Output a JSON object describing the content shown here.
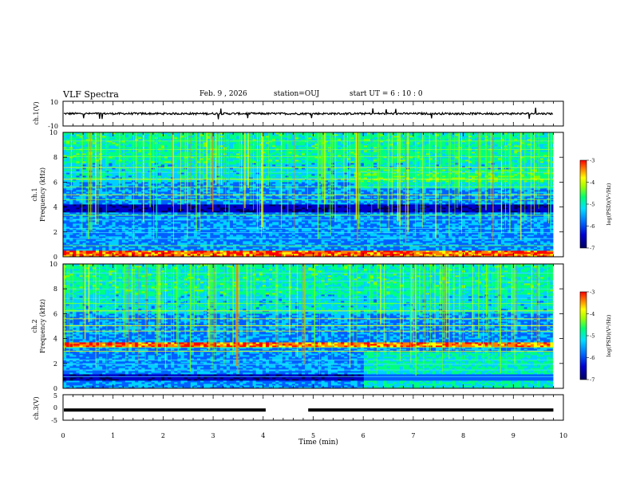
{
  "header": {
    "title": "VLF Spectra",
    "date": "Feb. 9  , 2026",
    "station": "station=OUJ",
    "start_ut": "start  UT =   6  : 10 : 0"
  },
  "chart_data": [
    {
      "type": "line",
      "panel": "ch1-waveform",
      "ylabel": "ch.1(V)",
      "ylim": [
        -10,
        10
      ],
      "yticks": [
        "10",
        "-10"
      ],
      "trace_level": 0,
      "xlim": [
        0,
        10
      ]
    },
    {
      "type": "heatmap",
      "panel": "ch1-spectrogram",
      "ylabel_line1": "ch.1",
      "ylabel_line2": "Frequency (kHz)",
      "ylim": [
        0,
        10
      ],
      "yticks": [
        "0",
        "2",
        "4",
        "6",
        "8",
        "10"
      ],
      "xlim": [
        0,
        9.8
      ],
      "colorbar": {
        "label": "log(PSD)(V²/Hz)",
        "ticks": [
          "-3",
          "-4",
          "-5",
          "-6",
          "-7"
        ],
        "range": [
          -7,
          -3
        ]
      },
      "bright_band_khz": [
        0,
        0.5
      ],
      "dark_band_khz": [
        3.6,
        4.2
      ]
    },
    {
      "type": "heatmap",
      "panel": "ch2-spectrogram",
      "ylabel_line1": "ch.2",
      "ylabel_line2": "Frequency (kHz)",
      "ylim": [
        0,
        10
      ],
      "yticks": [
        "0",
        "2",
        "4",
        "6",
        "8",
        "10"
      ],
      "xlim": [
        0,
        9.8
      ],
      "colorbar": {
        "label": "log(PSD)(V²/Hz)",
        "ticks": [
          "-3",
          "-4",
          "-5",
          "-6",
          "-7"
        ],
        "range": [
          -7,
          -3
        ]
      },
      "bright_band_khz": [
        3.3,
        3.7
      ],
      "dark_band_khz": [
        0.6,
        1.1
      ]
    },
    {
      "type": "line",
      "panel": "ch3-signal",
      "ylabel": "ch.3(V)",
      "ylim": [
        -5,
        5
      ],
      "yticks": [
        "5",
        "0",
        "-5"
      ],
      "trace_level": -1,
      "gap_minutes": [
        4.05,
        4.9
      ],
      "xlim": [
        0,
        10
      ],
      "xlabel": "Time (min)",
      "xticks": [
        "0",
        "1",
        "2",
        "3",
        "4",
        "5",
        "6",
        "7",
        "8",
        "9",
        "10"
      ]
    }
  ],
  "colors": {
    "scale": [
      "#000050",
      "#0000c8",
      "#0060ff",
      "#00d0ff",
      "#00ff80",
      "#80ff00",
      "#ffff00",
      "#ff8000",
      "#ff0000"
    ]
  }
}
